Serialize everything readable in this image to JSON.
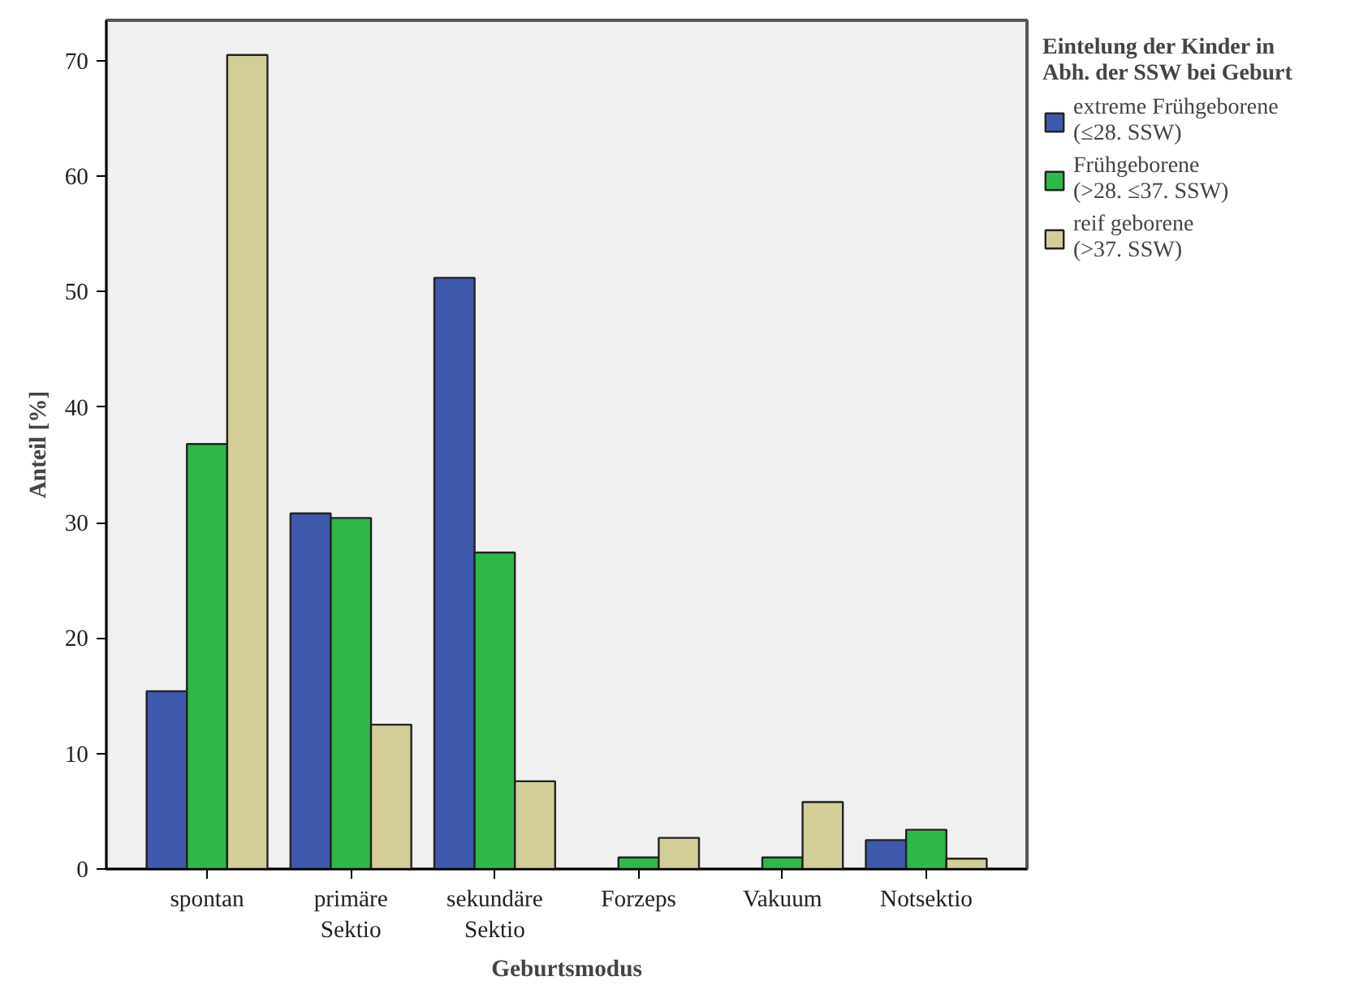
{
  "chart_data": {
    "type": "bar",
    "xlabel": "Geburtsmodus",
    "ylabel": "Anteil [%]",
    "legend_title": "Eintelung der Kinder in\nAbh. der SSW bei Geburt",
    "categories": [
      "spontan",
      "primäre\nSektio",
      "sekundäre\nSektio",
      "Forzeps",
      "Vakuum",
      "Notsektio"
    ],
    "series": [
      {
        "name": "extreme Frühgeborene\n(≤28. SSW)",
        "color": "#3e58ac",
        "values": [
          15.4,
          30.8,
          51.2,
          null,
          null,
          2.5
        ]
      },
      {
        "name": "Frühgeborene\n(>28. ≤37. SSW)",
        "color": "#2fb84a",
        "values": [
          36.8,
          30.4,
          27.4,
          1.0,
          1.0,
          3.4
        ]
      },
      {
        "name": "reif geborene\n(>37. SSW)",
        "color": "#d3ce97",
        "values": [
          70.5,
          12.5,
          7.6,
          2.7,
          5.8,
          0.9
        ]
      }
    ],
    "ylim": [
      0,
      73.5
    ],
    "yticks": [
      0,
      10,
      20,
      30,
      40,
      50,
      60,
      70
    ],
    "grid": false,
    "legend": "right"
  }
}
